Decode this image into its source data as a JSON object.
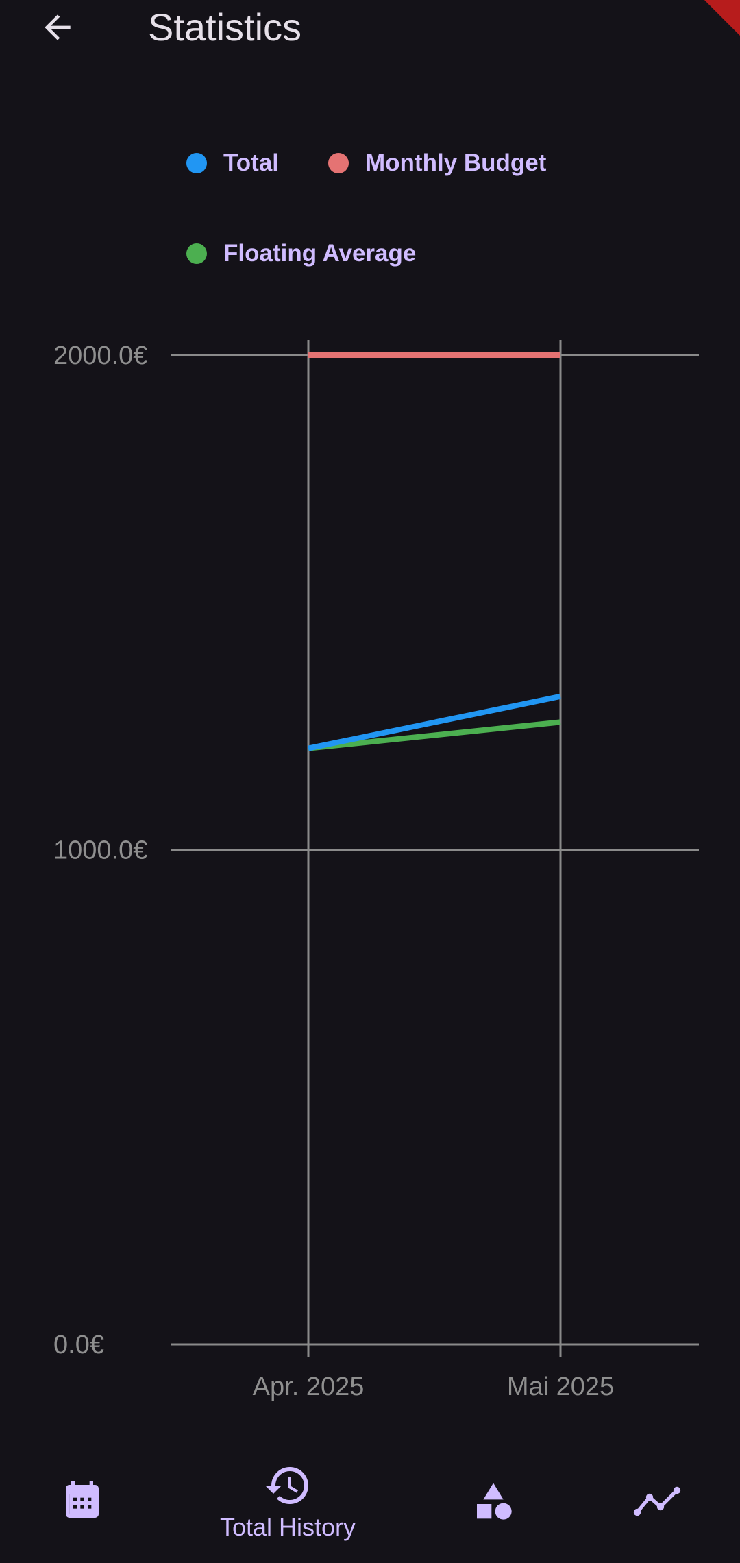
{
  "app_bar": {
    "title": "Statistics",
    "back_icon": "arrow-back-icon"
  },
  "colors": {
    "background": "#141218",
    "accent": "#d0bcff",
    "total": "#2196f3",
    "monthly_budget": "#e57373",
    "floating_average": "#4caf50",
    "grid": "#8a8a8a",
    "axis_text": "#8f8f8f"
  },
  "legend": [
    {
      "label": "Total",
      "color": "#2196f3"
    },
    {
      "label": "Monthly Budget",
      "color": "#e57373"
    },
    {
      "label": "Floating Average",
      "color": "#4caf50"
    }
  ],
  "chart_data": {
    "type": "line",
    "x": [
      "Apr. 2025",
      "Mai 2025"
    ],
    "series": [
      {
        "name": "Total",
        "values": [
          1205,
          1310
        ]
      },
      {
        "name": "Monthly Budget",
        "values": [
          2000,
          2000
        ]
      },
      {
        "name": "Floating Average",
        "values": [
          1205,
          1258
        ]
      }
    ],
    "yticks": [
      "0.0€",
      "1000.0€",
      "2000.0€"
    ],
    "ytick_values": [
      0,
      1000,
      2000
    ],
    "ylim": [
      0,
      2000
    ],
    "grid": true,
    "legend_position": "top-left"
  },
  "nav": {
    "items": [
      {
        "icon": "calendar-icon",
        "label": ""
      },
      {
        "icon": "history-icon",
        "label": "Total History"
      },
      {
        "icon": "categories-icon",
        "label": ""
      },
      {
        "icon": "statistics-icon",
        "label": ""
      }
    ]
  }
}
